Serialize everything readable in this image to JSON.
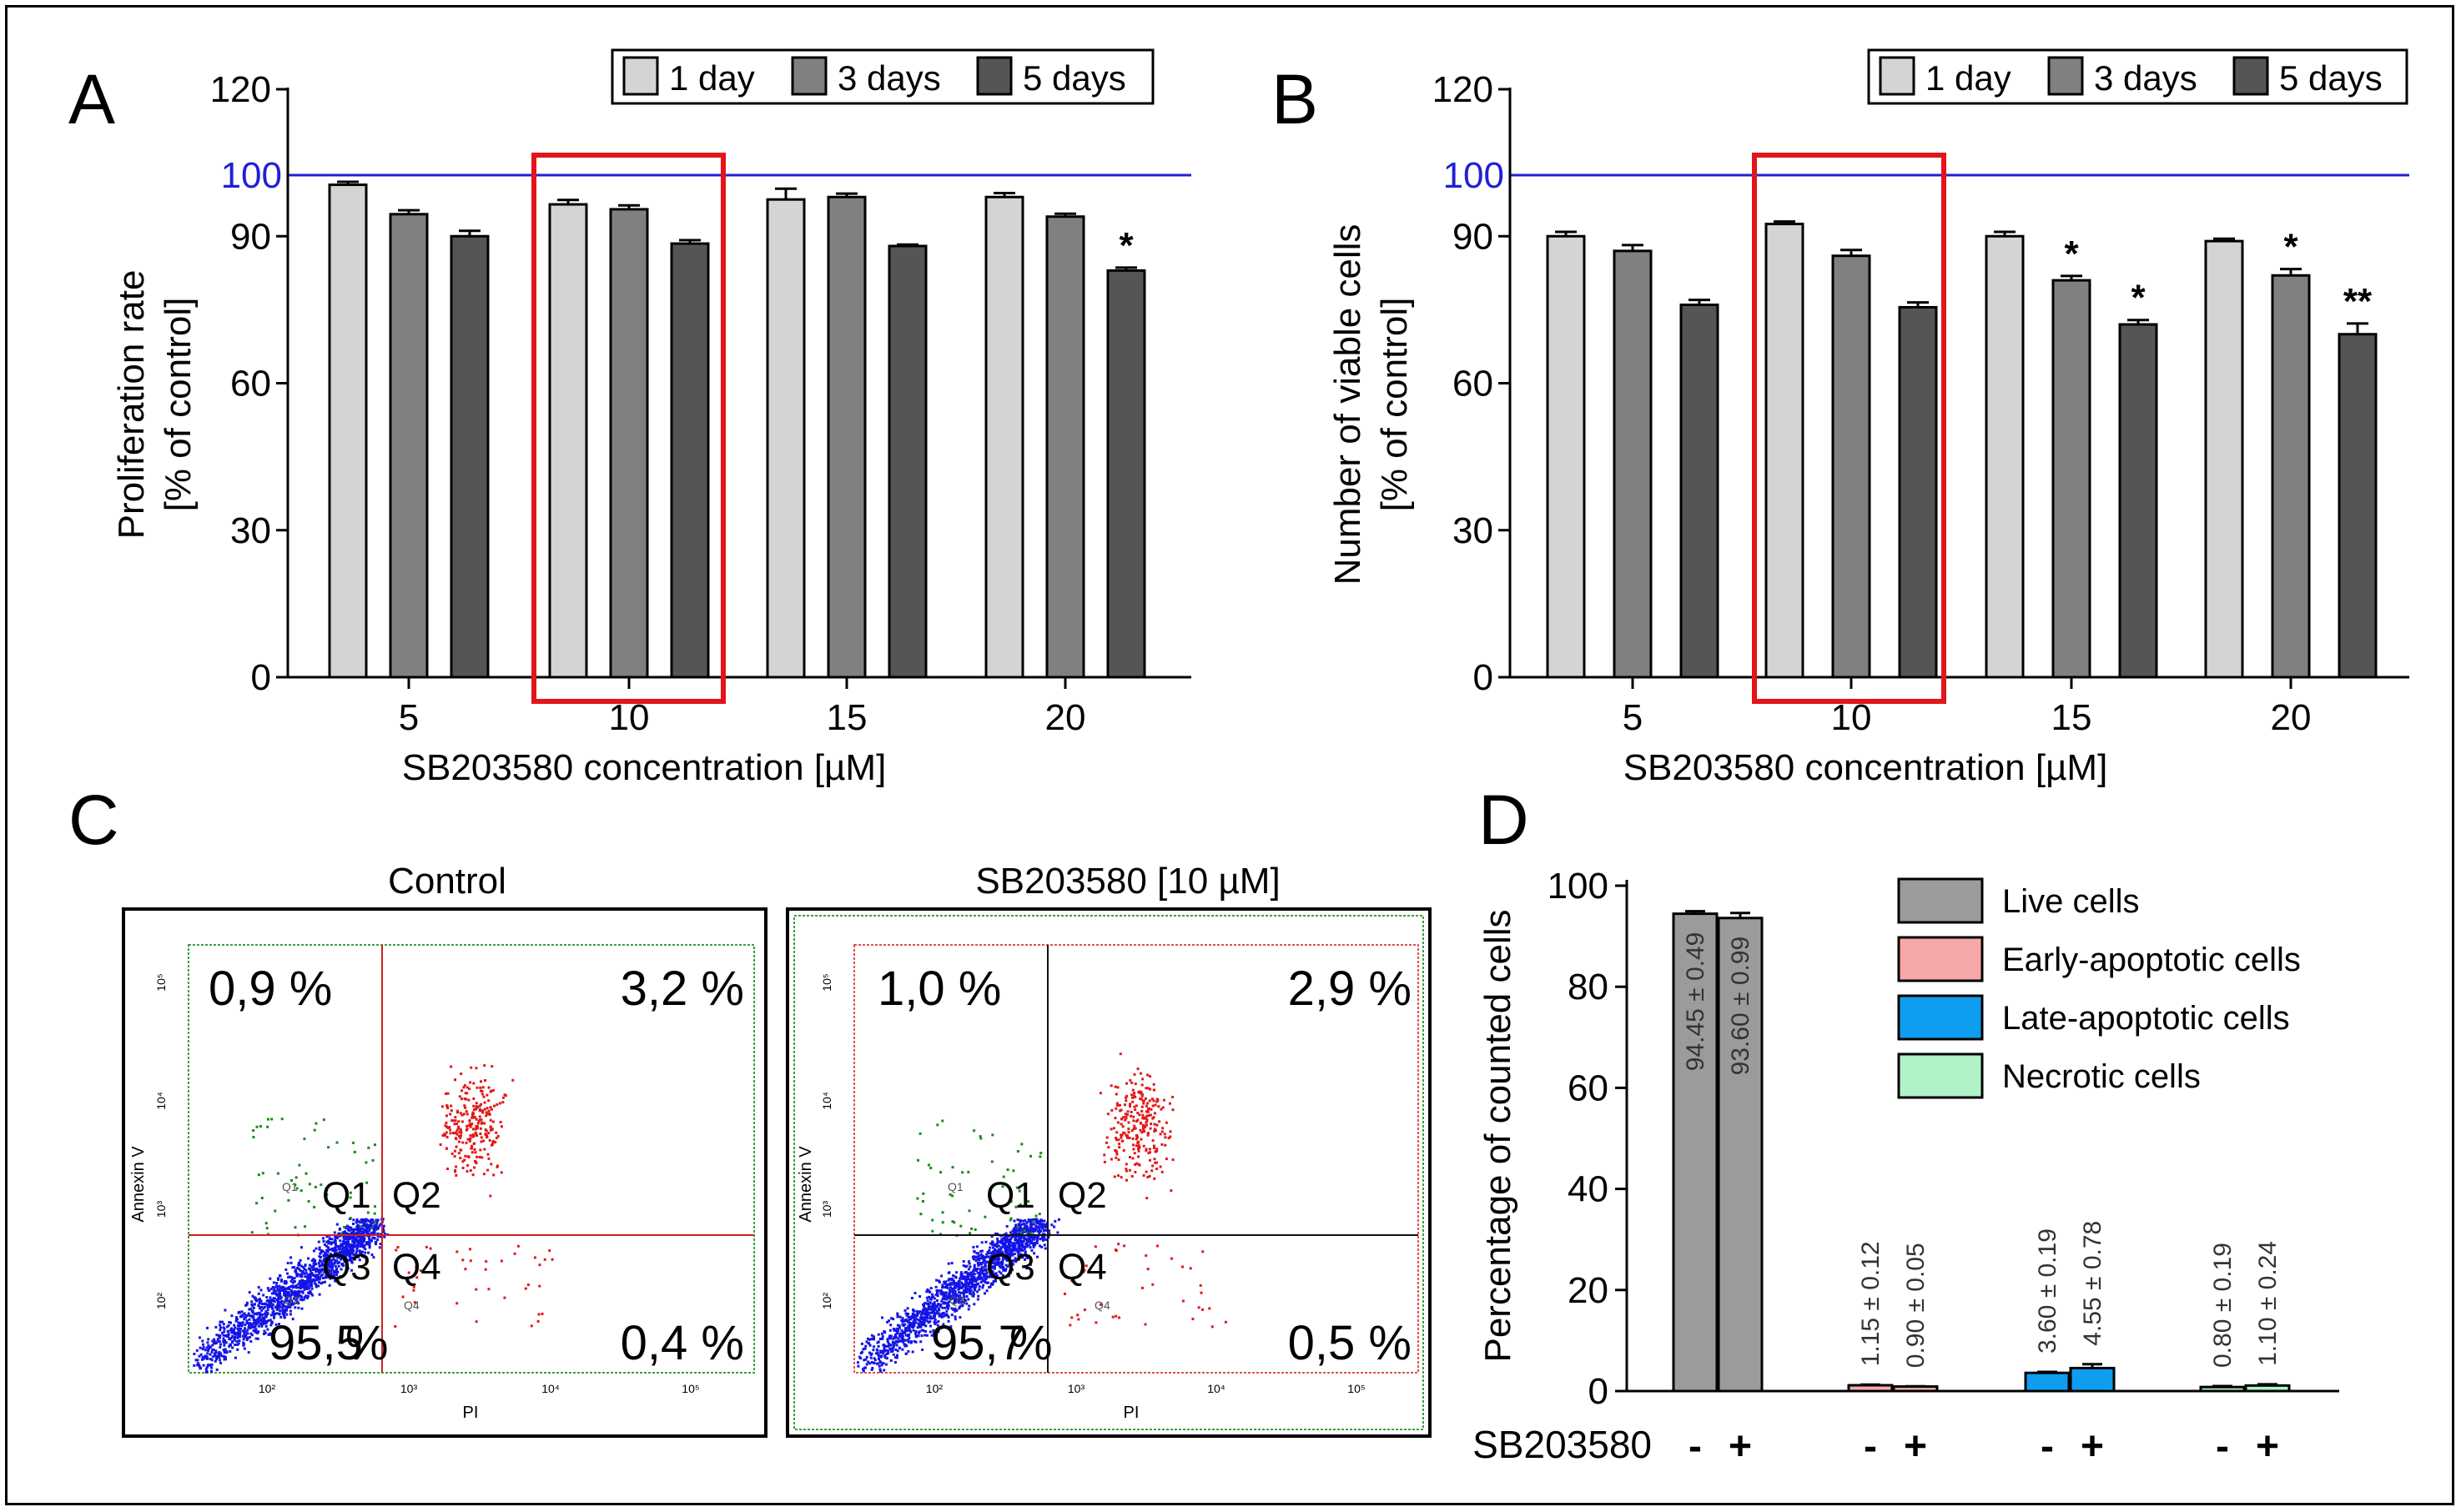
{
  "colors": {
    "day1": "#d4d4d4",
    "day3": "#808080",
    "day5": "#555555",
    "reference_line": "#1f1fd8",
    "highlight_box": "#e2151b",
    "dot_live": "#1414e6",
    "dot_red": "#e21818",
    "dot_green": "#1a8a1a",
    "live_cells": "#9b9b9b",
    "early_apoptotic": "#f6a8a8",
    "late_apoptotic": "#0f9df0",
    "necrotic": "#b2f2c9"
  },
  "panels": {
    "A": {
      "letter": "A"
    },
    "B": {
      "letter": "B"
    },
    "C": {
      "letter": "C",
      "control": {
        "title": "Control",
        "q1": "0,9 %",
        "q2": "3,2 %",
        "q3": "95,5",
        "q3_unit": "%",
        "q4": "0,4 %",
        "q1_label": "Q1",
        "q2_label": "Q2",
        "q3_label": "Q3",
        "q4_label": "Q4",
        "xlabel": "PI",
        "ylabel": "Annexin V",
        "x_ticks": [
          "10²",
          "10³",
          "10⁴",
          "10⁵"
        ],
        "y_ticks": [
          "10²",
          "10³",
          "10⁴",
          "10⁵"
        ],
        "small_q1": "Q1",
        "small_q3": "Q3",
        "small_q4": "Q4"
      },
      "treated": {
        "title": "SB203580 [10 µM]",
        "q1": "1,0 %",
        "q2": "2,9 %",
        "q3": "95,7",
        "q3_unit": "%",
        "q4": "0,5 %",
        "q1_label": "Q1",
        "q2_label": "Q2",
        "q3_label": "Q3",
        "q4_label": "Q4",
        "xlabel": "PI",
        "ylabel": "Annexin V",
        "x_ticks": [
          "10²",
          "10³",
          "10⁴",
          "10⁵"
        ],
        "y_ticks": [
          "10²",
          "10³",
          "10⁴",
          "10⁵"
        ],
        "small_q1": "Q1",
        "small_q3": "Q3",
        "small_q4": "Q4"
      }
    },
    "D": {
      "letter": "D"
    }
  },
  "chart_data": [
    {
      "id": "A",
      "type": "bar",
      "title": "",
      "xlabel": "SB203580 concentration [µM]",
      "ylabel_line1": "Proliferation rate",
      "ylabel_line2": "[% of control]",
      "categories": [
        "5",
        "10",
        "15",
        "20"
      ],
      "ylim": [
        0,
        120
      ],
      "yticks": [
        "0",
        "30",
        "60",
        "90",
        "120"
      ],
      "reference_value": 100,
      "reference_label": "100",
      "highlight_category": "10",
      "legend": [
        "1 day",
        "3 days",
        "5 days"
      ],
      "legend_position": "top-right",
      "series": [
        {
          "name": "1 day",
          "values": [
            100.5,
            96.5,
            97.5,
            98.0
          ],
          "errors": [
            0.6,
            0.9,
            2.2,
            0.8
          ],
          "marks": [
            "",
            "",
            "",
            ""
          ]
        },
        {
          "name": "3 days",
          "values": [
            94.5,
            95.5,
            98.0,
            94.0
          ],
          "errors": [
            0.8,
            0.8,
            0.7,
            0.6
          ],
          "marks": [
            "",
            "",
            "",
            ""
          ]
        },
        {
          "name": "5 days",
          "values": [
            90.0,
            88.5,
            88.0,
            83.0
          ],
          "errors": [
            1.1,
            0.7,
            0.3,
            0.6
          ],
          "marks": [
            "",
            "",
            "",
            "*"
          ]
        }
      ]
    },
    {
      "id": "B",
      "type": "bar",
      "title": "",
      "xlabel": "SB203580 concentration [µM]",
      "ylabel_line1": "Number of viable cells",
      "ylabel_line2": "[% of control]",
      "categories": [
        "5",
        "10",
        "15",
        "20"
      ],
      "ylim": [
        0,
        120
      ],
      "yticks": [
        "0",
        "30",
        "60",
        "90",
        "120"
      ],
      "reference_value": 100,
      "reference_label": "100",
      "highlight_category": "10",
      "legend": [
        "1 day",
        "3 days",
        "5 days"
      ],
      "legend_position": "top-right",
      "series": [
        {
          "name": "1 day",
          "values": [
            90.0,
            92.5,
            90.0,
            89.0
          ],
          "errors": [
            0.9,
            0.5,
            0.9,
            0.5
          ],
          "marks": [
            "",
            "",
            "",
            ""
          ]
        },
        {
          "name": "3 days",
          "values": [
            87.0,
            86.0,
            81.0,
            82.0
          ],
          "errors": [
            1.2,
            1.2,
            0.9,
            1.3
          ],
          "marks": [
            "",
            "",
            "*",
            "*"
          ]
        },
        {
          "name": "5 days",
          "values": [
            76.0,
            75.5,
            72.0,
            70.0
          ],
          "errors": [
            1.0,
            1.0,
            0.9,
            2.2
          ],
          "marks": [
            "",
            "",
            "*",
            "**"
          ]
        }
      ]
    },
    {
      "id": "D",
      "type": "bar",
      "title": "",
      "xlabel": "",
      "ylabel": "Percentage of counted cells",
      "row_label": "SB203580",
      "ylim": [
        0,
        100
      ],
      "yticks": [
        "0",
        "20",
        "40",
        "60",
        "80",
        "100"
      ],
      "legend_position": "top-right",
      "groups": [
        {
          "name": "Live cells",
          "color_key": "live_cells",
          "bars": [
            {
              "treatment": "-",
              "value": 94.45,
              "error": 0.49,
              "label": "94.45 ± 0.49"
            },
            {
              "treatment": "+",
              "value": 93.6,
              "error": 0.99,
              "label": "93.60 ± 0.99"
            }
          ]
        },
        {
          "name": "Early-apoptotic cells",
          "color_key": "early_apoptotic",
          "bars": [
            {
              "treatment": "-",
              "value": 1.15,
              "error": 0.12,
              "label": "1.15 ± 0.12"
            },
            {
              "treatment": "+",
              "value": 0.9,
              "error": 0.05,
              "label": "0.90 ± 0.05"
            }
          ]
        },
        {
          "name": "Late-apoptotic cells",
          "color_key": "late_apoptotic",
          "bars": [
            {
              "treatment": "-",
              "value": 3.6,
              "error": 0.19,
              "label": "3.60 ± 0.19"
            },
            {
              "treatment": "+",
              "value": 4.55,
              "error": 0.78,
              "label": "4.55 ± 0.78"
            }
          ]
        },
        {
          "name": "Necrotic cells",
          "color_key": "necrotic",
          "bars": [
            {
              "treatment": "-",
              "value": 0.8,
              "error": 0.19,
              "label": "0.80 ± 0.19"
            },
            {
              "treatment": "+",
              "value": 1.1,
              "error": 0.24,
              "label": "1.10 ± 0.24"
            }
          ]
        }
      ]
    }
  ]
}
